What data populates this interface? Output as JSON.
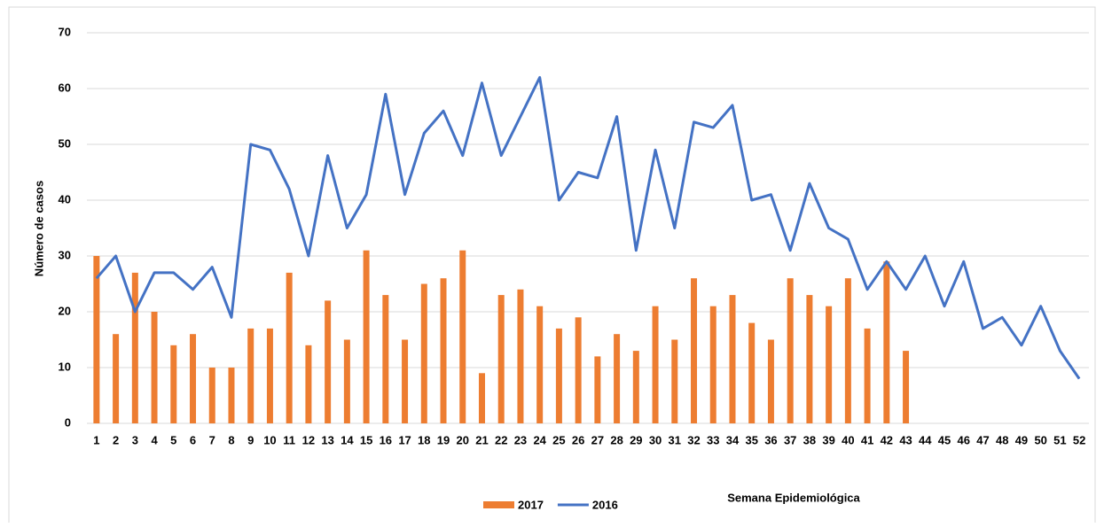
{
  "chart_data": {
    "type": "bar",
    "xlabel": "Semana Epidemiológica",
    "ylabel": "Número de casos",
    "categories": [
      "1",
      "2",
      "3",
      "4",
      "5",
      "6",
      "7",
      "8",
      "9",
      "10",
      "11",
      "12",
      "13",
      "14",
      "15",
      "16",
      "17",
      "18",
      "19",
      "20",
      "21",
      "22",
      "23",
      "24",
      "25",
      "26",
      "27",
      "28",
      "29",
      "30",
      "31",
      "32",
      "33",
      "34",
      "35",
      "36",
      "37",
      "38",
      "39",
      "40",
      "41",
      "42",
      "43",
      "44",
      "45",
      "46",
      "47",
      "48",
      "49",
      "50",
      "51",
      "52"
    ],
    "series": [
      {
        "name": "2017",
        "type": "bar",
        "color": "#ed7d31",
        "values": [
          30,
          16,
          27,
          20,
          14,
          16,
          10,
          10,
          17,
          17,
          27,
          14,
          22,
          15,
          31,
          23,
          15,
          25,
          26,
          31,
          9,
          23,
          24,
          21,
          17,
          19,
          12,
          16,
          13,
          21,
          15,
          26,
          21,
          23,
          18,
          15,
          26,
          23,
          21,
          26,
          17,
          29,
          13,
          null,
          null,
          null,
          null,
          null,
          null,
          null,
          null,
          null
        ]
      },
      {
        "name": "2016",
        "type": "line",
        "color": "#4472c4",
        "values": [
          26,
          30,
          20,
          27,
          27,
          24,
          28,
          19,
          50,
          49,
          42,
          30,
          48,
          35,
          41,
          59,
          41,
          52,
          56,
          48,
          61,
          48,
          55,
          62,
          40,
          45,
          44,
          55,
          31,
          49,
          35,
          54,
          53,
          57,
          40,
          41,
          31,
          43,
          35,
          33,
          24,
          29,
          24,
          30,
          21,
          29,
          17,
          19,
          14,
          21,
          13,
          8
        ]
      }
    ],
    "ylim": [
      0,
      70
    ],
    "yticks": [
      0,
      10,
      20,
      30,
      40,
      50,
      60,
      70
    ],
    "grid": true
  }
}
